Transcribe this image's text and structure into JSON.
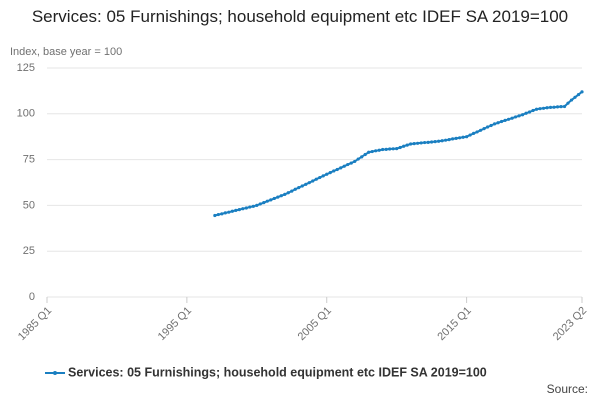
{
  "chart_data": {
    "type": "line",
    "title": "Services: 05 Furnishings; household equipment etc IDEF SA 2019=100",
    "y_label": "Index, base year = 100",
    "source": "Source:",
    "categories": [
      "1985 Q1",
      null,
      null,
      null,
      null,
      null,
      null,
      null,
      null,
      null,
      null,
      null,
      null,
      null,
      null,
      null,
      null,
      null,
      null,
      null,
      null,
      null,
      null,
      null,
      null,
      null,
      null,
      null,
      null,
      null,
      null,
      null,
      null,
      null,
      null,
      null,
      null,
      null,
      null,
      null,
      "1995 Q1",
      null,
      null,
      null,
      null,
      null,
      null,
      null,
      null,
      null,
      null,
      null,
      null,
      null,
      null,
      null,
      null,
      null,
      null,
      null,
      null,
      null,
      null,
      null,
      null,
      null,
      null,
      null,
      null,
      null,
      null,
      null,
      null,
      null,
      null,
      null,
      null,
      null,
      null,
      null,
      "2005 Q1",
      null,
      null,
      null,
      null,
      null,
      null,
      null,
      null,
      null,
      null,
      null,
      null,
      null,
      null,
      null,
      null,
      null,
      null,
      null,
      null,
      null,
      null,
      null,
      null,
      null,
      null,
      null,
      null,
      null,
      null,
      null,
      null,
      null,
      null,
      null,
      null,
      null,
      null,
      null,
      "2015 Q1",
      null,
      null,
      null,
      null,
      null,
      null,
      null,
      null,
      null,
      null,
      null,
      null,
      null,
      null,
      null,
      null,
      null,
      null,
      null,
      null,
      null,
      null,
      null,
      null,
      null,
      null,
      null,
      null,
      null,
      null,
      null,
      null,
      "2023 Q2"
    ],
    "series": [
      {
        "name": "Services: 05 Furnishings; household equipment etc IDEF SA 2019=100",
        "color": "#1a7fc1",
        "values": [
          null,
          null,
          null,
          null,
          null,
          null,
          null,
          null,
          null,
          null,
          null,
          null,
          null,
          null,
          null,
          null,
          null,
          null,
          null,
          null,
          null,
          null,
          null,
          null,
          null,
          null,
          null,
          null,
          null,
          null,
          null,
          null,
          null,
          null,
          null,
          null,
          null,
          null,
          null,
          null,
          null,
          null,
          null,
          null,
          null,
          null,
          null,
          null,
          44.5,
          45.0,
          45.4,
          45.9,
          46.3,
          46.8,
          47.3,
          47.7,
          48.2,
          48.6,
          49.1,
          49.5,
          50.0,
          50.8,
          51.5,
          52.3,
          53.0,
          53.8,
          54.5,
          55.3,
          56.0,
          56.9,
          57.8,
          58.8,
          59.7,
          60.6,
          61.5,
          62.4,
          63.3,
          64.3,
          65.2,
          66.1,
          67.0,
          67.9,
          68.8,
          69.6,
          70.5,
          71.4,
          72.3,
          73.1,
          74.0,
          75.3,
          76.5,
          77.8,
          79.0,
          79.4,
          79.8,
          80.1,
          80.5,
          80.6,
          80.8,
          80.9,
          81.0,
          81.6,
          82.3,
          82.9,
          83.5,
          83.7,
          83.9,
          84.1,
          84.3,
          84.4,
          84.6,
          84.8,
          85.0,
          85.3,
          85.6,
          85.9,
          86.3,
          86.6,
          86.9,
          87.2,
          87.5,
          88.4,
          89.3,
          90.1,
          91.0,
          91.9,
          92.8,
          93.6,
          94.5,
          95.1,
          95.8,
          96.4,
          97.0,
          97.6,
          98.3,
          98.9,
          99.5,
          100.3,
          101.0,
          101.8,
          102.5,
          102.8,
          103.0,
          103.3,
          103.5,
          103.6,
          103.8,
          103.9,
          104.0,
          105.8,
          107.5,
          109.0,
          110.5,
          112.0
        ]
      }
    ],
    "ylim": [
      0,
      125
    ],
    "yticks": [
      0,
      25,
      50,
      75,
      100,
      125
    ],
    "grid": true
  }
}
